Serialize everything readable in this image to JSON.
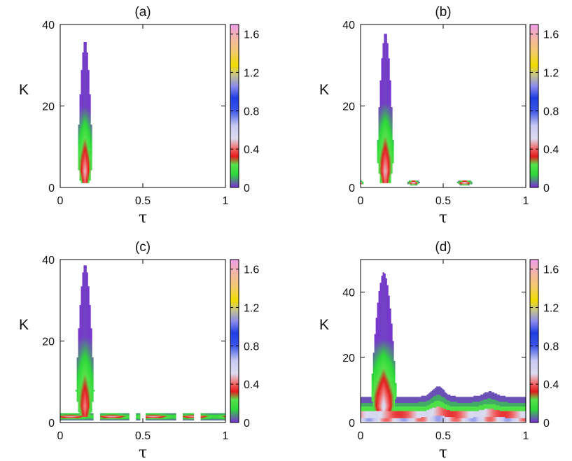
{
  "chart_data": [
    {
      "type": "heatmap",
      "title": "(a)",
      "xlabel": "τ",
      "ylabel": "K",
      "xlim": [
        0,
        1
      ],
      "ylim": [
        0,
        40
      ],
      "xticks": [
        "0",
        "0.5",
        "1"
      ],
      "yticks": [
        "0",
        "20",
        "40"
      ],
      "colorbar": {
        "range": [
          0,
          1.7
        ],
        "ticks": [
          "0",
          "0.4",
          "0.8",
          "1.2",
          "1.6"
        ]
      },
      "regions": [
        {
          "kind": "tongue",
          "tau_center": 0.15,
          "k_top": 36,
          "k_bottom": 1.2,
          "half_width": 0.05,
          "min_value_at_k": 4,
          "min_value": 0.5
        }
      ]
    },
    {
      "type": "heatmap",
      "title": "(b)",
      "xlabel": "τ",
      "ylabel": "K",
      "xlim": [
        0,
        1
      ],
      "ylim": [
        0,
        40
      ],
      "xticks": [
        "0",
        "0.5",
        "1"
      ],
      "yticks": [
        "0",
        "20",
        "40"
      ],
      "colorbar": {
        "range": [
          0,
          1.7
        ],
        "ticks": [
          "0",
          "0.4",
          "0.8",
          "1.2",
          "1.6"
        ]
      },
      "regions": [
        {
          "kind": "tongue",
          "tau_center": 0.15,
          "k_top": 38,
          "k_bottom": 1.2,
          "half_width": 0.055,
          "min_value_at_k": 4,
          "min_value": 0.5
        },
        {
          "kind": "island",
          "tau_center": 0.32,
          "k_center": 1.2,
          "tau_half": 0.035,
          "k_half": 0.6
        },
        {
          "kind": "island",
          "tau_center": 0.63,
          "k_center": 1.2,
          "tau_half": 0.045,
          "k_half": 0.6
        },
        {
          "kind": "island",
          "tau_center": 0.0,
          "k_center": 1.2,
          "tau_half": 0.015,
          "k_half": 0.5
        }
      ]
    },
    {
      "type": "heatmap",
      "title": "(c)",
      "xlabel": "τ",
      "ylabel": "K",
      "xlim": [
        0,
        1
      ],
      "ylim": [
        0,
        40
      ],
      "xticks": [
        "0",
        "0.5",
        "1"
      ],
      "yticks": [
        "0",
        "20",
        "40"
      ],
      "colorbar": {
        "range": [
          0,
          1.7
        ],
        "ticks": [
          "0",
          "0.4",
          "0.8",
          "1.2",
          "1.6"
        ]
      },
      "regions": [
        {
          "kind": "tongue",
          "tau_center": 0.15,
          "k_top": 39,
          "k_bottom": 1.5,
          "half_width": 0.06,
          "min_value_at_k": 4,
          "min_value": 0.45
        },
        {
          "kind": "band",
          "tau_start": 0.0,
          "tau_end": 1.0,
          "k_center": 1.5,
          "k_half": 0.8,
          "dips_at_tau": [
            0.22,
            0.44,
            0.5,
            0.72,
            0.83
          ]
        }
      ]
    },
    {
      "type": "heatmap",
      "title": "(d)",
      "xlabel": "τ",
      "ylabel": "K",
      "xlim": [
        0,
        1
      ],
      "ylim": [
        0,
        50
      ],
      "xticks": [
        "0",
        "0.5",
        "1"
      ],
      "yticks": [
        "0",
        "20",
        "40"
      ],
      "colorbar": {
        "range": [
          0,
          1.7
        ],
        "ticks": [
          "0",
          "0.4",
          "0.8",
          "1.2",
          "1.6"
        ]
      },
      "regions": [
        {
          "kind": "tongue",
          "tau_center": 0.14,
          "k_top": 46,
          "k_bottom": 1.0,
          "half_width": 0.085,
          "min_value_at_k": 5,
          "min_value": 0.55
        },
        {
          "kind": "plateau",
          "tau_start": 0.0,
          "tau_end": 1.0,
          "k_top": 8,
          "bumps": [
            {
              "tau": 0.47,
              "k_top": 11
            },
            {
              "tau": 0.78,
              "k_top": 9.5
            }
          ]
        }
      ]
    }
  ]
}
